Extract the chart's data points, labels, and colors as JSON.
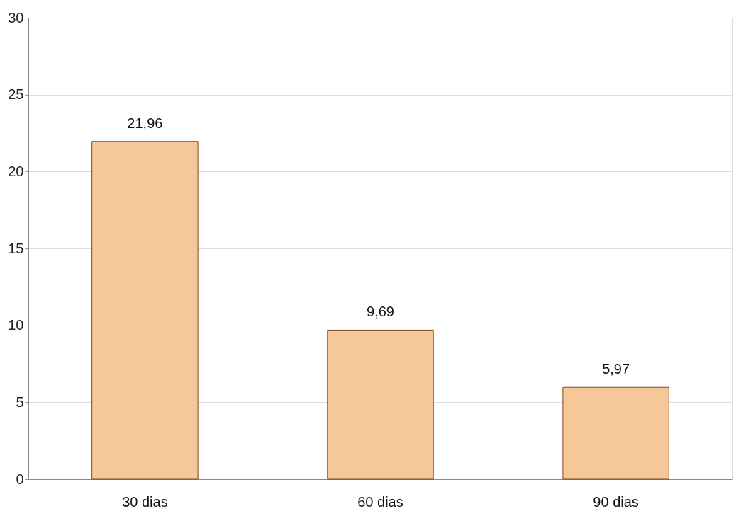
{
  "chart_data": {
    "type": "bar",
    "categories": [
      "30 dias",
      "60 dias",
      "90 dias"
    ],
    "values": [
      21.96,
      9.69,
      5.97
    ],
    "value_labels": [
      "21,96",
      "9,69",
      "5,97"
    ],
    "color": "#f6c799",
    "ylim": [
      0,
      30
    ],
    "yticks": [
      0,
      5,
      10,
      15,
      20,
      25,
      30
    ],
    "grid": "y"
  }
}
